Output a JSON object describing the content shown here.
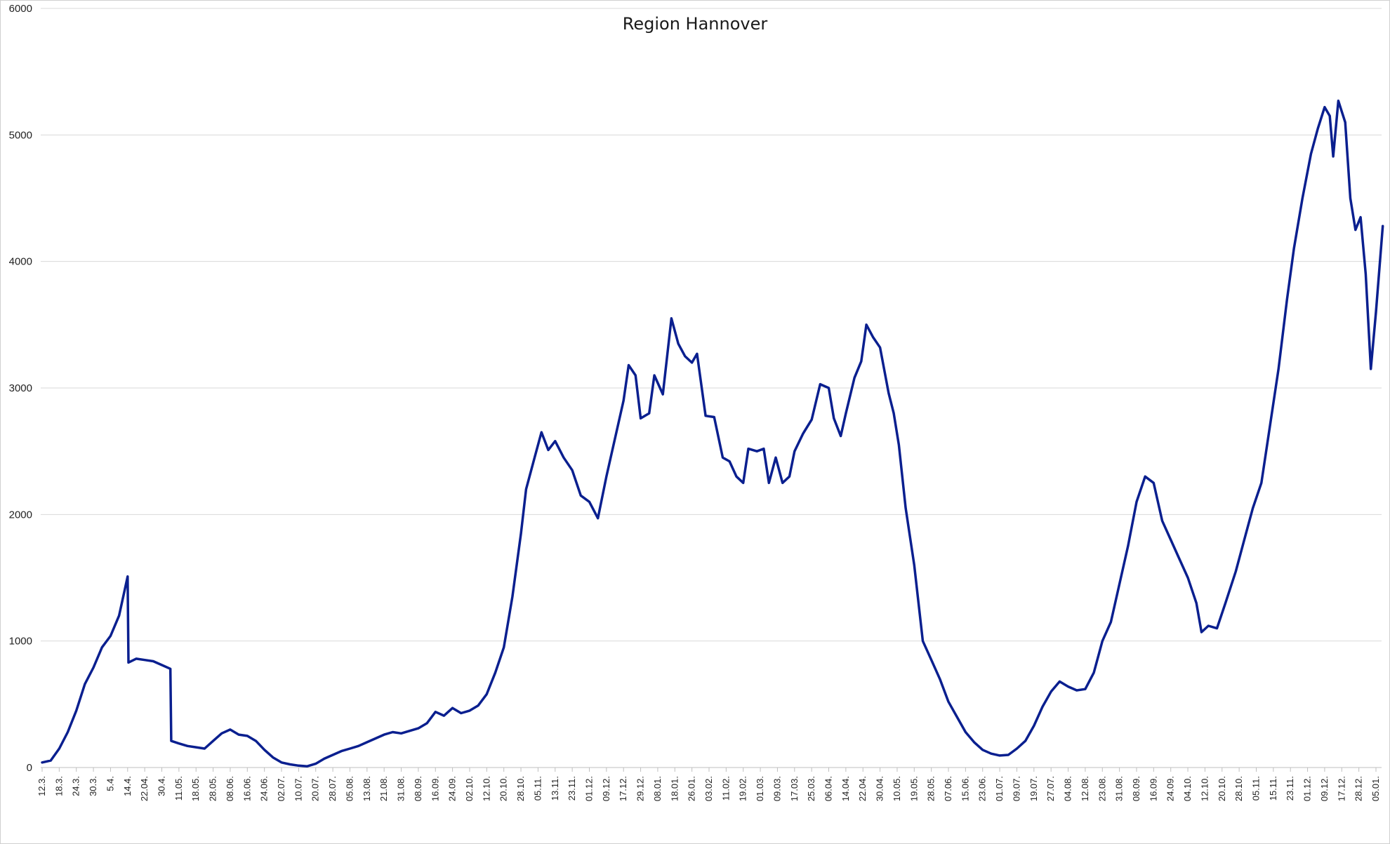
{
  "chart_data": {
    "type": "line",
    "title": "Region Hannover",
    "xlabel": "",
    "ylabel": "",
    "ylim": [
      0,
      6000
    ],
    "yticks": [
      0,
      1000,
      2000,
      3000,
      4000,
      5000,
      6000
    ],
    "grid": true,
    "color": "#0a1f8f",
    "categories": [
      "12.3.",
      "18.3.",
      "24.3.",
      "30.3.",
      "5.4.",
      "14.4.",
      "22.04.",
      "30.4.",
      "11.05.",
      "18.05.",
      "28.05.",
      "08.06.",
      "16.06.",
      "24.06.",
      "02.07.",
      "10.07.",
      "20.07.",
      "28.07.",
      "05.08.",
      "13.08.",
      "21.08.",
      "31.08.",
      "08.09.",
      "16.09.",
      "24.09.",
      "02.10.",
      "12.10.",
      "20.10.",
      "28.10.",
      "05.11.",
      "13.11.",
      "23.11.",
      "01.12.",
      "09.12.",
      "17.12.",
      "29.12.",
      "08.01.",
      "18.01.",
      "26.01.",
      "03.02.",
      "11.02.",
      "19.02.",
      "01.03.",
      "09.03.",
      "17.03.",
      "25.03.",
      "06.04.",
      "14.04.",
      "22.04.",
      "30.04.",
      "10.05.",
      "19.05.",
      "28.05.",
      "07.06.",
      "15.06.",
      "23.06.",
      "01.07.",
      "09.07.",
      "19.07.",
      "27.07.",
      "04.08.",
      "12.08.",
      "23.08.",
      "31.08.",
      "08.09.",
      "16.09.",
      "24.09.",
      "04.10.",
      "12.10.",
      "20.10.",
      "28.10.",
      "05.11.",
      "15.11.",
      "23.11.",
      "01.12.",
      "09.12.",
      "17.12.",
      "28.12.",
      "05.01."
    ],
    "series": [
      {
        "values": [
          [
            0,
            40
          ],
          [
            0.5,
            55
          ],
          [
            1,
            150
          ],
          [
            1.5,
            280
          ],
          [
            2,
            450
          ],
          [
            2.5,
            660
          ],
          [
            3,
            790
          ],
          [
            3.5,
            950
          ],
          [
            4,
            1040
          ],
          [
            4.5,
            1200
          ],
          [
            5,
            1510
          ],
          [
            5.05,
            830
          ],
          [
            5.5,
            860
          ],
          [
            6,
            850
          ],
          [
            6.5,
            840
          ],
          [
            7,
            810
          ],
          [
            7.5,
            780
          ],
          [
            7.55,
            210
          ],
          [
            8,
            190
          ],
          [
            8.5,
            170
          ],
          [
            9,
            160
          ],
          [
            9.5,
            150
          ],
          [
            10,
            210
          ],
          [
            10.5,
            270
          ],
          [
            11,
            300
          ],
          [
            11.5,
            260
          ],
          [
            12,
            250
          ],
          [
            12.5,
            210
          ],
          [
            13,
            140
          ],
          [
            13.5,
            80
          ],
          [
            14,
            40
          ],
          [
            14.5,
            25
          ],
          [
            15,
            15
          ],
          [
            15.5,
            10
          ],
          [
            16,
            30
          ],
          [
            16.5,
            70
          ],
          [
            17,
            100
          ],
          [
            17.5,
            130
          ],
          [
            18,
            150
          ],
          [
            18.5,
            170
          ],
          [
            19,
            200
          ],
          [
            19.5,
            230
          ],
          [
            20,
            260
          ],
          [
            20.5,
            280
          ],
          [
            21,
            270
          ],
          [
            21.5,
            290
          ],
          [
            22,
            310
          ],
          [
            22.5,
            350
          ],
          [
            23,
            440
          ],
          [
            23.5,
            410
          ],
          [
            24,
            470
          ],
          [
            24.5,
            430
          ],
          [
            25,
            450
          ],
          [
            25.5,
            490
          ],
          [
            26,
            580
          ],
          [
            26.5,
            750
          ],
          [
            27,
            950
          ],
          [
            27.5,
            1350
          ],
          [
            28,
            1850
          ],
          [
            28.3,
            2200
          ],
          [
            28.8,
            2450
          ],
          [
            29.2,
            2650
          ],
          [
            29.6,
            2510
          ],
          [
            30,
            2580
          ],
          [
            30.5,
            2450
          ],
          [
            31,
            2350
          ],
          [
            31.5,
            2150
          ],
          [
            32,
            2100
          ],
          [
            32.5,
            1970
          ],
          [
            33,
            2300
          ],
          [
            33.5,
            2600
          ],
          [
            34,
            2900
          ],
          [
            34.3,
            3180
          ],
          [
            34.7,
            3100
          ],
          [
            35,
            2760
          ],
          [
            35.5,
            2800
          ],
          [
            35.8,
            3100
          ],
          [
            36.3,
            2950
          ],
          [
            36.8,
            3550
          ],
          [
            37.2,
            3350
          ],
          [
            37.6,
            3250
          ],
          [
            38,
            3200
          ],
          [
            38.3,
            3270
          ],
          [
            38.8,
            2780
          ],
          [
            39.3,
            2770
          ],
          [
            39.8,
            2450
          ],
          [
            40.2,
            2420
          ],
          [
            40.6,
            2300
          ],
          [
            41,
            2250
          ],
          [
            41.3,
            2520
          ],
          [
            41.8,
            2500
          ],
          [
            42.2,
            2520
          ],
          [
            42.5,
            2250
          ],
          [
            42.9,
            2450
          ],
          [
            43.3,
            2250
          ],
          [
            43.7,
            2300
          ],
          [
            44,
            2500
          ],
          [
            44.5,
            2640
          ],
          [
            45,
            2750
          ],
          [
            45.5,
            3030
          ],
          [
            46,
            3000
          ],
          [
            46.3,
            2760
          ],
          [
            46.7,
            2620
          ],
          [
            47,
            2800
          ],
          [
            47.5,
            3080
          ],
          [
            47.9,
            3210
          ],
          [
            48.2,
            3500
          ],
          [
            48.6,
            3400
          ],
          [
            49,
            3320
          ],
          [
            49.5,
            2960
          ],
          [
            49.8,
            2800
          ],
          [
            50.1,
            2550
          ],
          [
            50.5,
            2050
          ],
          [
            51,
            1600
          ],
          [
            51.5,
            1000
          ],
          [
            52,
            850
          ],
          [
            52.5,
            700
          ],
          [
            53,
            520
          ],
          [
            53.5,
            400
          ],
          [
            54,
            280
          ],
          [
            54.5,
            200
          ],
          [
            55,
            140
          ],
          [
            55.5,
            110
          ],
          [
            56,
            95
          ],
          [
            56.5,
            100
          ],
          [
            57,
            150
          ],
          [
            57.5,
            210
          ],
          [
            58,
            330
          ],
          [
            58.5,
            480
          ],
          [
            59,
            600
          ],
          [
            59.5,
            680
          ],
          [
            60,
            640
          ],
          [
            60.5,
            610
          ],
          [
            61,
            620
          ],
          [
            61.5,
            750
          ],
          [
            62,
            1000
          ],
          [
            62.5,
            1150
          ],
          [
            63,
            1450
          ],
          [
            63.5,
            1750
          ],
          [
            64,
            2100
          ],
          [
            64.5,
            2300
          ],
          [
            65,
            2250
          ],
          [
            65.5,
            1950
          ],
          [
            66,
            1800
          ],
          [
            66.5,
            1650
          ],
          [
            67,
            1500
          ],
          [
            67.5,
            1300
          ],
          [
            67.8,
            1070
          ],
          [
            68.2,
            1120
          ],
          [
            68.7,
            1100
          ],
          [
            69.2,
            1300
          ],
          [
            69.8,
            1550
          ],
          [
            70.3,
            1800
          ],
          [
            70.8,
            2050
          ],
          [
            71.3,
            2250
          ],
          [
            71.8,
            2700
          ],
          [
            72.3,
            3150
          ],
          [
            72.8,
            3700
          ],
          [
            73.2,
            4100
          ],
          [
            73.7,
            4500
          ],
          [
            74.2,
            4850
          ],
          [
            74.6,
            5050
          ],
          [
            75,
            5220
          ],
          [
            75.3,
            5150
          ],
          [
            75.5,
            4830
          ],
          [
            75.8,
            5270
          ],
          [
            76.2,
            5100
          ],
          [
            76.5,
            4500
          ],
          [
            76.8,
            4250
          ],
          [
            77.1,
            4350
          ],
          [
            77.4,
            3900
          ],
          [
            77.7,
            3150
          ],
          [
            78,
            3600
          ],
          [
            78.4,
            4280
          ]
        ]
      }
    ]
  }
}
